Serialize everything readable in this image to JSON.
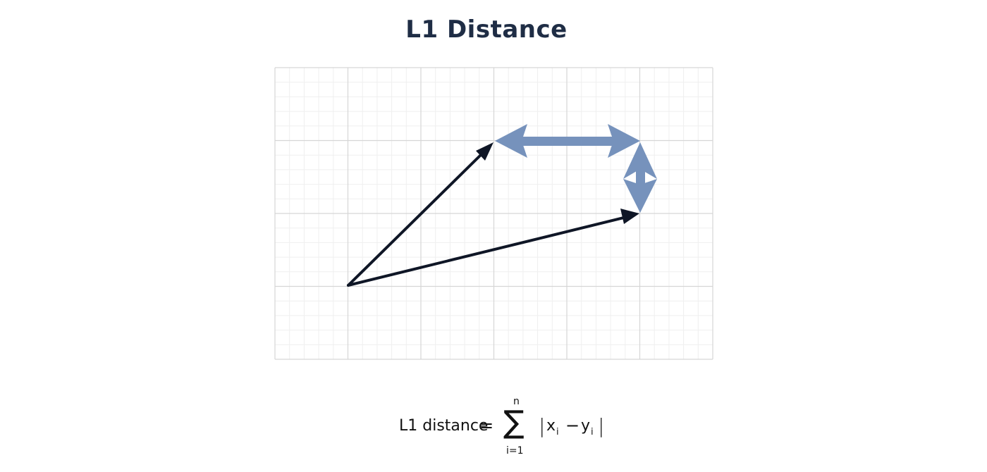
{
  "title": "L1 Distance",
  "colors": {
    "title": "#1f2d45",
    "vector": "#0f1626",
    "distance_arrow": "#7692bc",
    "grid_major": "#d6d6d6",
    "grid_minor": "#efefef"
  },
  "formula": {
    "lhs": "L1 distance",
    "equals": "=",
    "sum_symbol": "∑",
    "upper_limit": "n",
    "lower_limit": "i=1",
    "bar_left": "|",
    "x": "x",
    "x_sub": "i",
    "minus": "−",
    "y": "y",
    "y_sub": "i",
    "bar_right": "|"
  }
}
